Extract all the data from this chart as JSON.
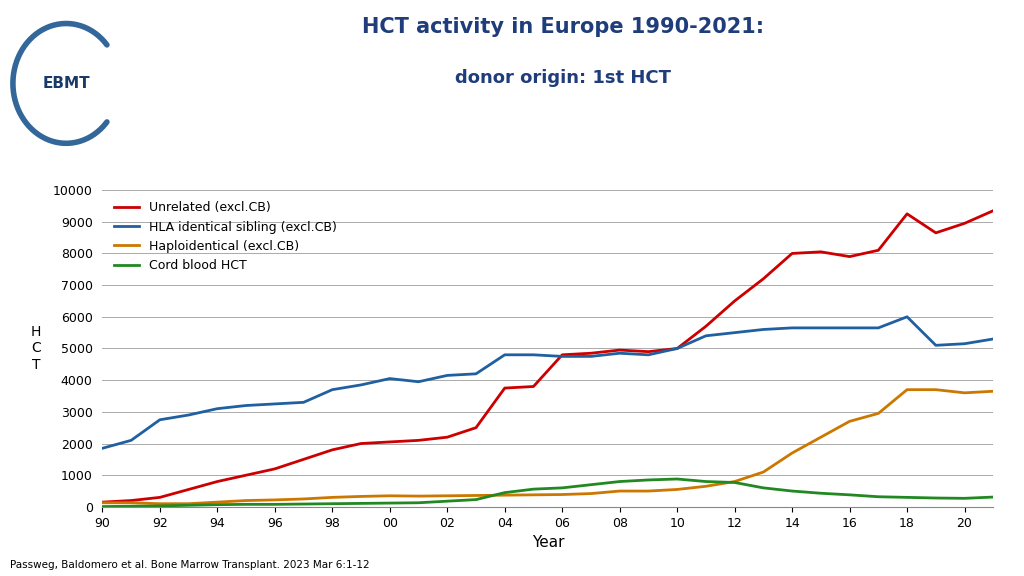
{
  "title_line1": "HCT activity in Europe 1990-2021:",
  "title_line2": "donor origin: 1st HCT",
  "xlabel": "Year",
  "ylabel": "H\nC\nT",
  "citation": "Passweg, Baldomero et al. Bone Marrow Transplant. 2023 Mar 6:1-12",
  "years": [
    1990,
    1991,
    1992,
    1993,
    1994,
    1995,
    1996,
    1997,
    1998,
    1999,
    2000,
    2001,
    2002,
    2003,
    2004,
    2005,
    2006,
    2007,
    2008,
    2009,
    2010,
    2011,
    2012,
    2013,
    2014,
    2015,
    2016,
    2017,
    2018,
    2019,
    2020,
    2021
  ],
  "unrelated": [
    150,
    200,
    300,
    550,
    800,
    1000,
    1200,
    1500,
    1800,
    2000,
    2050,
    2100,
    2200,
    2500,
    3750,
    3800,
    4800,
    4850,
    4950,
    4900,
    5000,
    5700,
    6500,
    7200,
    8000,
    8050,
    7900,
    8100,
    9250,
    8650,
    8950,
    9350
  ],
  "hla_sibling": [
    1850,
    2100,
    2750,
    2900,
    3100,
    3200,
    3250,
    3300,
    3700,
    3850,
    4050,
    3950,
    4150,
    4200,
    4800,
    4800,
    4750,
    4750,
    4850,
    4800,
    5000,
    5400,
    5500,
    5600,
    5650,
    5650,
    5650,
    5650,
    6000,
    5100,
    5150,
    5300
  ],
  "haploidentical": [
    130,
    130,
    100,
    100,
    150,
    200,
    220,
    250,
    300,
    330,
    350,
    340,
    350,
    360,
    370,
    380,
    390,
    420,
    500,
    500,
    550,
    650,
    800,
    1100,
    1700,
    2200,
    2700,
    2950,
    3700,
    3700,
    3600,
    3650
  ],
  "cord_blood": [
    10,
    20,
    30,
    50,
    70,
    80,
    80,
    90,
    100,
    110,
    120,
    130,
    180,
    230,
    450,
    560,
    600,
    700,
    800,
    850,
    880,
    800,
    770,
    600,
    500,
    430,
    380,
    320,
    300,
    280,
    270,
    310
  ],
  "unrelated_color": "#cc0000",
  "hla_sibling_color": "#2060a0",
  "haploidentical_color": "#cc7700",
  "cord_blood_color": "#228822",
  "ylim": [
    0,
    10000
  ],
  "yticks": [
    0,
    1000,
    2000,
    3000,
    4000,
    5000,
    6000,
    7000,
    8000,
    9000,
    10000
  ],
  "xtick_labels": [
    "90",
    "92",
    "94",
    "96",
    "98",
    "00",
    "02",
    "04",
    "06",
    "08",
    "10",
    "12",
    "14",
    "16",
    "18",
    "20"
  ],
  "xtick_positions": [
    1990,
    1992,
    1994,
    1996,
    1998,
    2000,
    2002,
    2004,
    2006,
    2008,
    2010,
    2012,
    2014,
    2016,
    2018,
    2020
  ],
  "background_color": "#ffffff",
  "grid_color": "#aaaaaa",
  "title_color": "#1f3d7a",
  "linewidth": 2.0
}
